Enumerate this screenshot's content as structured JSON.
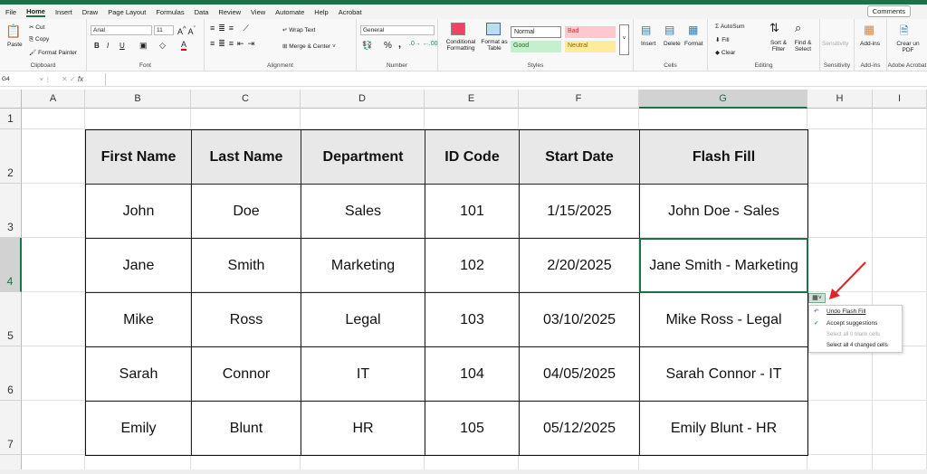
{
  "tabs": [
    "File",
    "Home",
    "Insert",
    "Draw",
    "Page Layout",
    "Formulas",
    "Data",
    "Review",
    "View",
    "Automate",
    "Help",
    "Acrobat"
  ],
  "active_tab": "Home",
  "comments_label": "Comments",
  "ribbon": {
    "clipboard": {
      "paste": "Paste",
      "cut": "Cut",
      "copy": "Copy",
      "format_painter": "Format Painter",
      "label": "Clipboard"
    },
    "font": {
      "name": "Arial",
      "size": "11",
      "bold": "B",
      "italic": "I",
      "underline": "U",
      "label": "Font"
    },
    "alignment": {
      "wrap": "Wrap Text",
      "merge": "Merge & Center",
      "label": "Alignment"
    },
    "number": {
      "format": "General",
      "percent": "%",
      "comma": ",",
      "label": "Number"
    },
    "styles": {
      "conditional": "Conditional Formatting",
      "format_table": "Format as Table",
      "normal": "Normal",
      "bad": "Bad",
      "good": "Good",
      "neutral": "Neutral",
      "label": "Styles"
    },
    "cells": {
      "insert": "Insert",
      "delete": "Delete",
      "format": "Format",
      "label": "Cells"
    },
    "editing": {
      "autosum": "AutoSum",
      "fill": "Fill",
      "clear": "Clear",
      "sort": "Sort & Filter",
      "find": "Find & Select",
      "label": "Editing"
    },
    "sensitivity": {
      "button": "Sensitivity",
      "label": "Sensitivity"
    },
    "addins": {
      "button": "Add-ins",
      "label": "Add-ins"
    },
    "acrobat": {
      "button": "Crear un PDF",
      "label": "Adobe Acrobat"
    }
  },
  "name_box": "G4",
  "formula": "",
  "columns": [
    "A",
    "B",
    "C",
    "D",
    "E",
    "F",
    "G",
    "H",
    "I"
  ],
  "rows": [
    "1",
    "2",
    "3",
    "4",
    "5",
    "6",
    "7"
  ],
  "selected_cell": "G4",
  "table": {
    "headers": [
      "First Name",
      "Last Name",
      "Department",
      "ID Code",
      "Start Date",
      "Flash Fill"
    ],
    "rows": [
      [
        "John",
        "Doe",
        "Sales",
        "101",
        "1/15/2025",
        "John Doe - Sales"
      ],
      [
        "Jane",
        "Smith",
        "Marketing",
        "102",
        "2/20/2025",
        "Jane Smith - Marketing"
      ],
      [
        "Mike",
        "Ross",
        "Legal",
        "103",
        "03/10/2025",
        "Mike Ross - Legal"
      ],
      [
        "Sarah",
        "Connor",
        "IT",
        "104",
        "04/05/2025",
        "Sarah Connor - IT"
      ],
      [
        "Emily",
        "Blunt",
        "HR",
        "105",
        "05/12/2025",
        "Emily Blunt - HR"
      ]
    ]
  },
  "flash_menu": {
    "undo": "Undo Flash Fill",
    "accept": "Accept suggestions",
    "blank": "Select all 0 blank cells",
    "changed": "Select all 4 changed cells"
  },
  "colors": {
    "excel_green": "#1e7145",
    "arrow": "#e02424",
    "bad": "#ffc7ce",
    "good": "#c6efce",
    "neutral": "#ffeb9c"
  }
}
